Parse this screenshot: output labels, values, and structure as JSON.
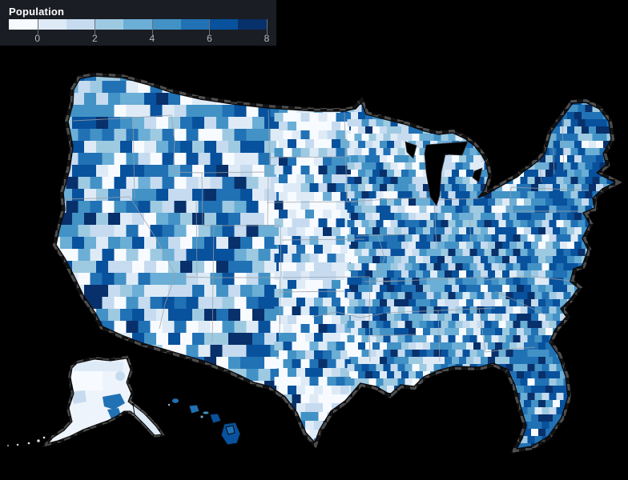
{
  "legend": {
    "title": "Population",
    "ticks": [
      "0",
      "2",
      "4",
      "6",
      "8"
    ],
    "panel_bg": "#1b1d24",
    "tick_color": "#6a7078",
    "label_color": "#b7bac0"
  },
  "map": {
    "background": "#000000",
    "coast_stroke": "#0a0a0c",
    "state_border": "#99a0a8",
    "lake_fill": "#000000",
    "checker_light": "#8c8c8c",
    "checker_dark": "#222222",
    "alaska_base": "#eef4fb"
  },
  "chart_data": {
    "type": "heatmap",
    "subtype": "choropleth",
    "title": "Population",
    "region": "United States counties (Albers projection with Alaska and Hawaii insets)",
    "legend_ticks": [
      0,
      2,
      4,
      6,
      8
    ],
    "legend_domain": [
      -1,
      8
    ],
    "legend_position": "top-left",
    "palette_scheme": "Blues, 9 steps",
    "palette": [
      "#f7fbff",
      "#deebf7",
      "#c6dbef",
      "#9ecae1",
      "#6baed6",
      "#4292c6",
      "#2171b5",
      "#08519c",
      "#08306b"
    ]
  },
  "mosaic": {
    "seed": 1337,
    "cell_sizes": {
      "west": 15,
      "mid": 11,
      "east": 9
    },
    "regions": {
      "west": [
        15,
        11,
        9,
        7,
        7,
        10,
        13,
        14,
        9
      ],
      "plains": [
        34,
        20,
        12,
        7,
        5,
        6,
        6,
        6,
        4
      ],
      "upper_midwest": [
        12,
        12,
        12,
        12,
        12,
        12,
        10,
        10,
        8
      ],
      "texas_east": [
        15,
        12,
        11,
        10,
        10,
        11,
        11,
        11,
        9
      ],
      "east": [
        5,
        6,
        8,
        10,
        12,
        13,
        14,
        15,
        11
      ],
      "northeast": [
        2,
        3,
        5,
        7,
        10,
        14,
        17,
        20,
        14
      ],
      "florida": [
        2,
        2,
        3,
        5,
        7,
        10,
        18,
        22,
        14
      ]
    }
  }
}
